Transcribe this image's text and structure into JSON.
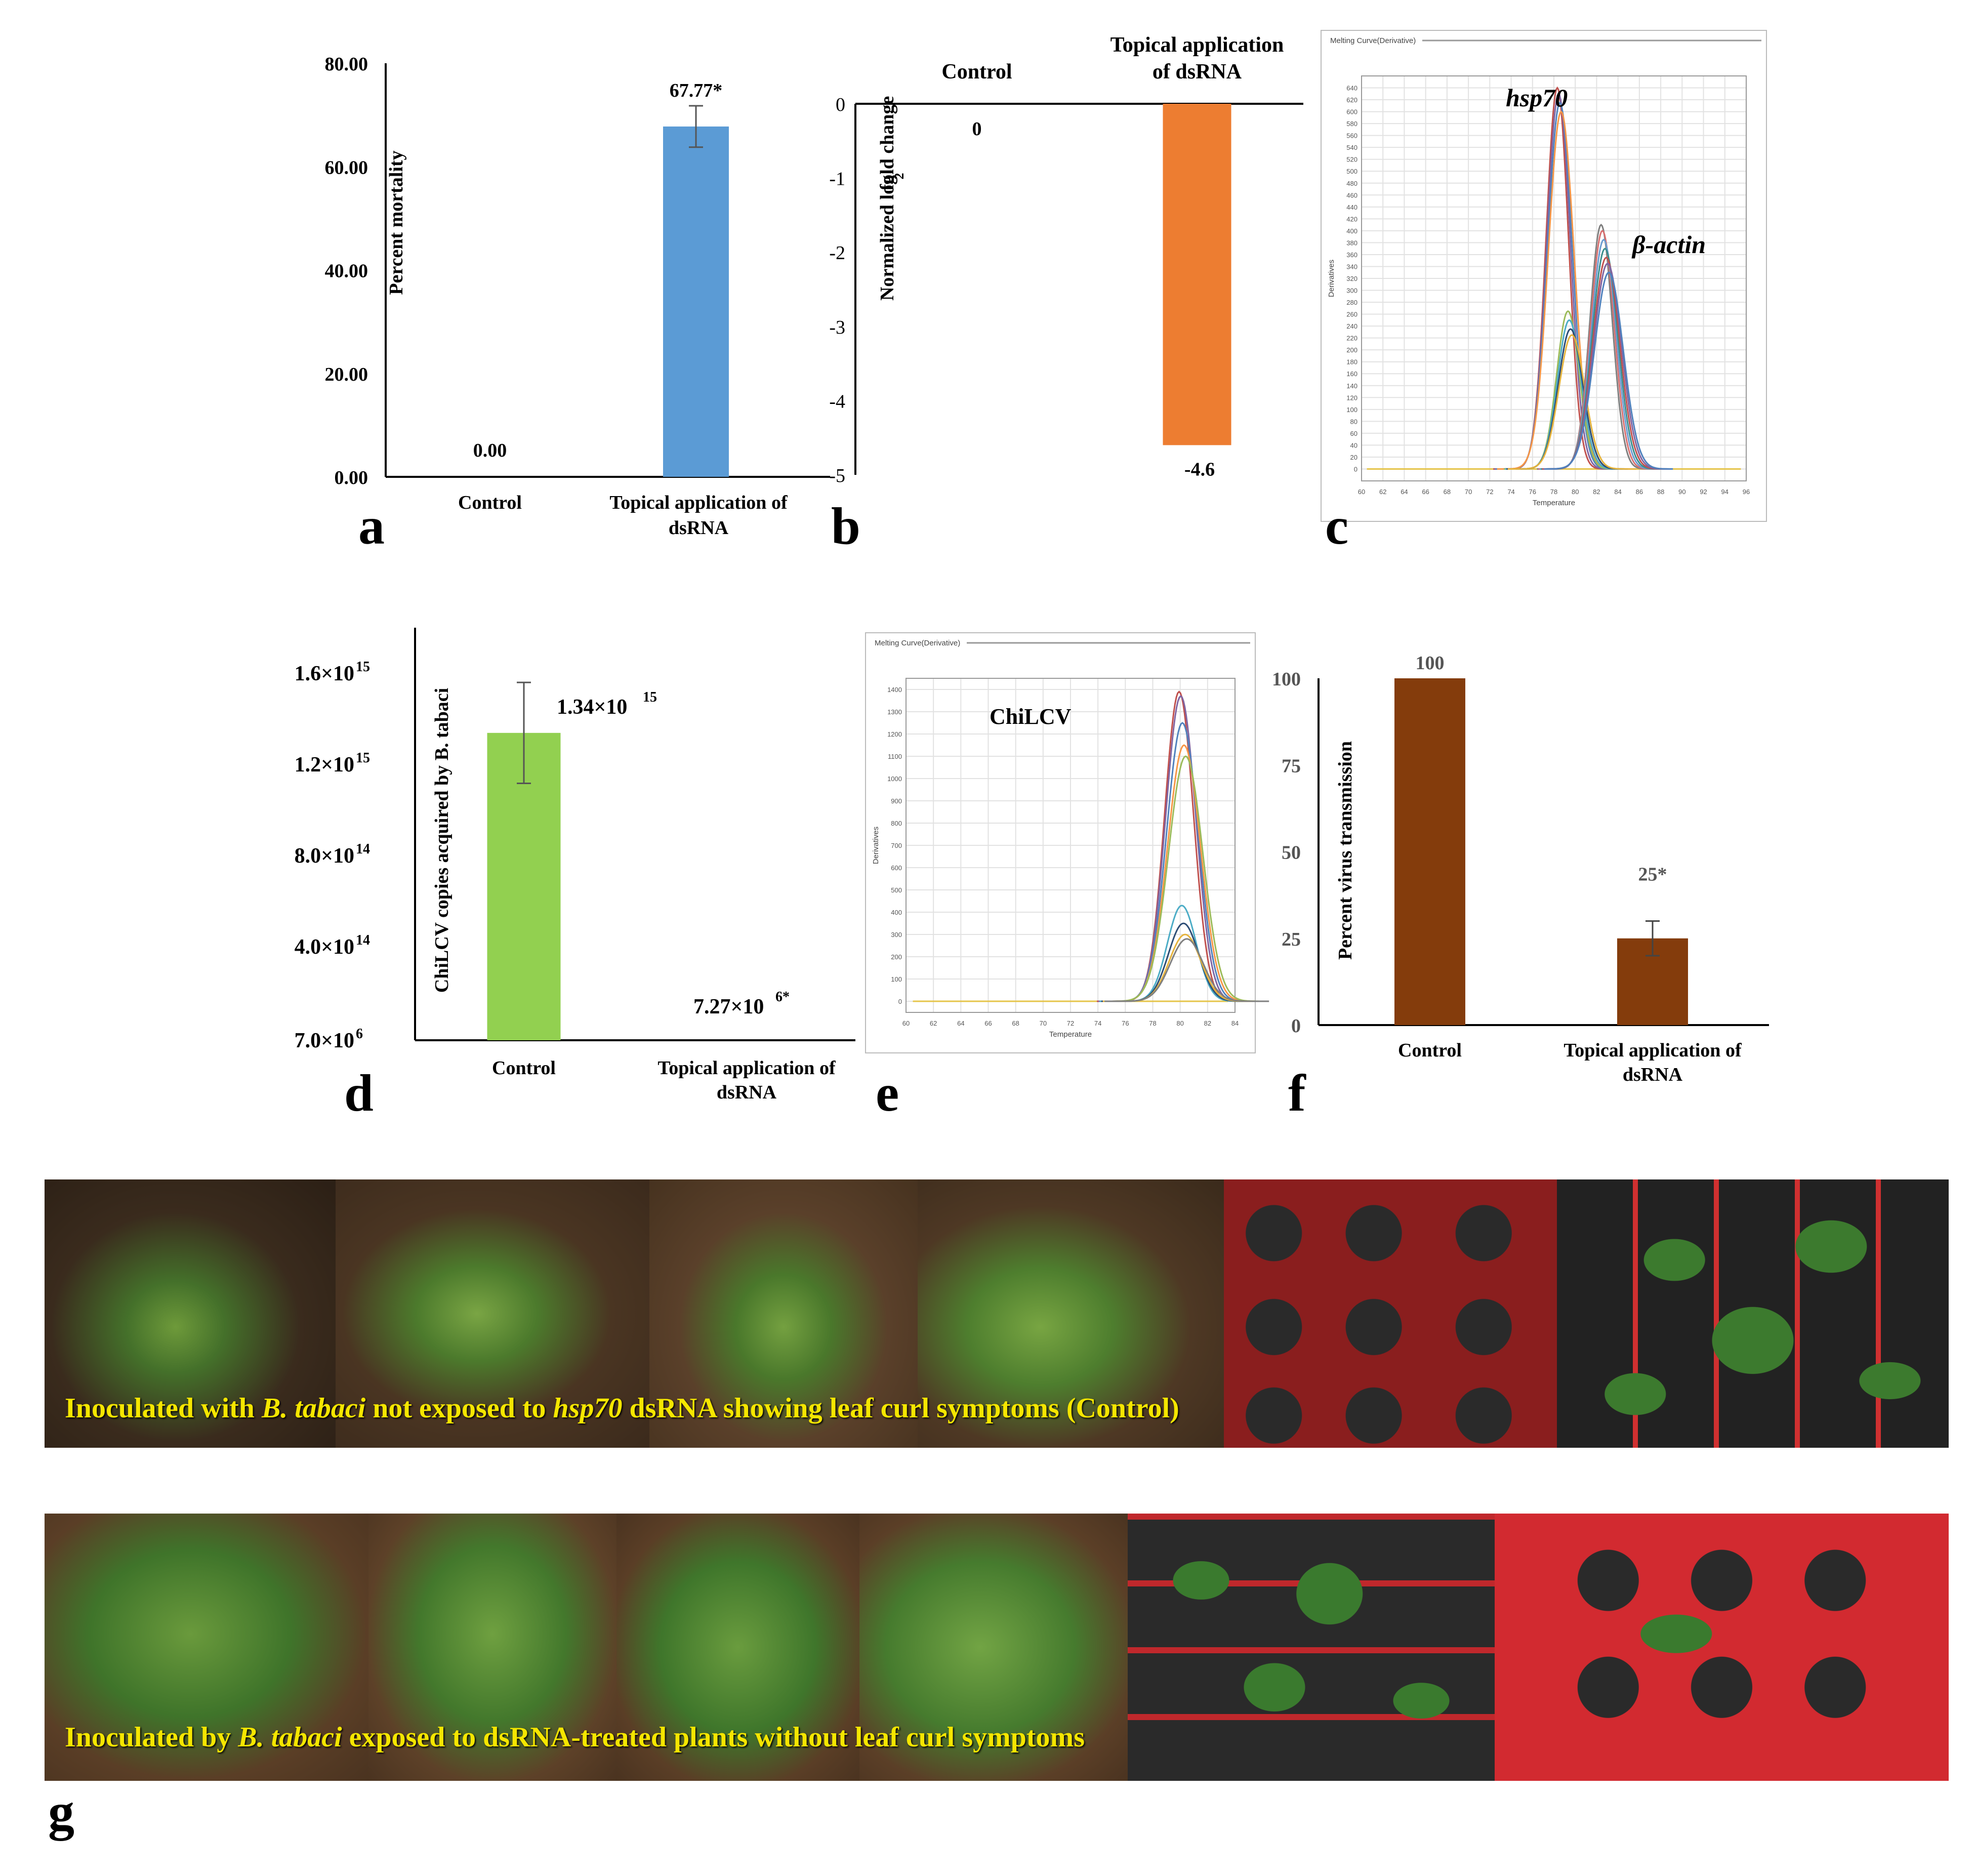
{
  "chart_data": [
    {
      "panel": "a",
      "type": "bar",
      "categories": [
        "Control",
        "Topical application of dsRNA"
      ],
      "values": [
        0.0,
        67.77
      ],
      "error": [
        0,
        4
      ],
      "value_labels": [
        "0.00",
        "67.77*"
      ],
      "ylabel": "Percent mortality",
      "ylim": [
        0,
        80
      ],
      "yticks": [
        "0.00",
        "20.00",
        "40.00",
        "60.00",
        "80.00"
      ],
      "colors": [
        "#5b9bd5",
        "#5b9bd5"
      ]
    },
    {
      "panel": "b",
      "type": "bar",
      "categories": [
        "Control",
        "Topical application of dsRNA"
      ],
      "category_labels": [
        [
          "Control"
        ],
        [
          "Topical application",
          "of dsRNA"
        ]
      ],
      "values": [
        0,
        -4.6
      ],
      "value_labels": [
        "0",
        "-4.6"
      ],
      "ylabel": "Normalized log2 fold change",
      "ylim": [
        -5,
        0
      ],
      "yticks": [
        "0",
        "-1",
        "-2",
        "-3",
        "-4",
        "-5"
      ],
      "colors": [
        "#ed7d31",
        "#ed7d31"
      ]
    },
    {
      "panel": "c",
      "type": "line",
      "title": "Melting Curve(Derivative)",
      "xlabel": "Temperature",
      "ylabel": "Derivatives",
      "xlim": [
        60,
        96
      ],
      "ylim": [
        -20,
        660
      ],
      "xticks": [
        60,
        62,
        64,
        66,
        68,
        70,
        72,
        74,
        76,
        78,
        80,
        82,
        84,
        86,
        88,
        90,
        92,
        94,
        96
      ],
      "yticks": [
        0,
        20,
        40,
        60,
        80,
        100,
        120,
        140,
        160,
        180,
        200,
        220,
        240,
        260,
        280,
        300,
        320,
        340,
        360,
        380,
        400,
        420,
        440,
        460,
        480,
        500,
        520,
        540,
        560,
        580,
        600,
        620,
        640
      ],
      "annotations": [
        "hsp70",
        "β-actin"
      ],
      "peaks": [
        {
          "name": "hsp70",
          "center": 78.5,
          "heights": [
            640,
            630,
            615,
            600
          ]
        },
        {
          "name": "hsp70-low",
          "center": 79.5,
          "heights": [
            265,
            250,
            235,
            225
          ]
        },
        {
          "name": "β-actin",
          "center": 82.6,
          "heights": [
            410,
            400,
            385,
            370,
            355,
            345,
            330
          ]
        }
      ],
      "grid": true
    },
    {
      "panel": "d",
      "type": "bar",
      "categories": [
        "Control",
        "Topical application of dsRNA"
      ],
      "values": [
        1340000000000000.0,
        7270000.0
      ],
      "error": [
        220000000000000.0,
        0
      ],
      "value_labels": [
        "1.34×10",
        "7.27×10"
      ],
      "value_exponents": [
        "15",
        "6*"
      ],
      "ylabel": "ChiLCV copies acquired by B. tabaci",
      "ylim": [
        7000000.0,
        1600000000000000.0
      ],
      "yticks": [
        [
          "1.6×10",
          "15"
        ],
        [
          "1.2×10",
          "15"
        ],
        [
          "8.0×10",
          "14"
        ],
        [
          "4.0×10",
          "14"
        ],
        [
          "7.0×10",
          "6"
        ]
      ],
      "colors": [
        "#92d050",
        "#92d050"
      ]
    },
    {
      "panel": "e",
      "type": "line",
      "title": "Melting Curve(Derivative)",
      "xlabel": "Temperature",
      "ylabel": "Derivatives",
      "xlim": [
        60,
        84
      ],
      "ylim": [
        -50,
        1450
      ],
      "xticks": [
        60,
        62,
        64,
        66,
        68,
        70,
        72,
        74,
        76,
        78,
        80,
        82,
        84
      ],
      "yticks": [
        0,
        100,
        200,
        300,
        400,
        500,
        600,
        700,
        800,
        900,
        1000,
        1100,
        1200,
        1300,
        1400
      ],
      "annotations": [
        "ChiLCV"
      ],
      "peaks": [
        {
          "name": "high",
          "center": 80.1,
          "heights": [
            1390,
            1370,
            1250,
            1150,
            1100
          ]
        },
        {
          "name": "low",
          "center": 80.3,
          "heights": [
            430,
            350,
            300,
            280
          ]
        }
      ],
      "grid": true
    },
    {
      "panel": "f",
      "type": "bar",
      "categories": [
        "Control",
        "Topical application of dsRNA"
      ],
      "values": [
        100,
        25
      ],
      "error": [
        0,
        5
      ],
      "value_labels": [
        "100",
        "25*"
      ],
      "ylabel": "Percent virus transmission",
      "ylim": [
        0,
        100
      ],
      "yticks": [
        "0",
        "25",
        "50",
        "75",
        "100"
      ],
      "colors": [
        "#843c0c",
        "#843c0c"
      ]
    }
  ],
  "panel_letters": [
    "a",
    "b",
    "c",
    "d",
    "e",
    "f",
    "g"
  ],
  "photos": {
    "row1_caption": {
      "p1": "Inoculated with ",
      "p2": "B. tabaci",
      "p3": " not exposed to ",
      "p4": "hsp70",
      "p5": " dsRNA showing leaf curl symptoms (Control)"
    },
    "row2_caption": {
      "p1": "Inoculated by ",
      "p2": "B. tabaci",
      "p3": " exposed to dsRNA-treated plants without leaf curl symptoms"
    }
  }
}
